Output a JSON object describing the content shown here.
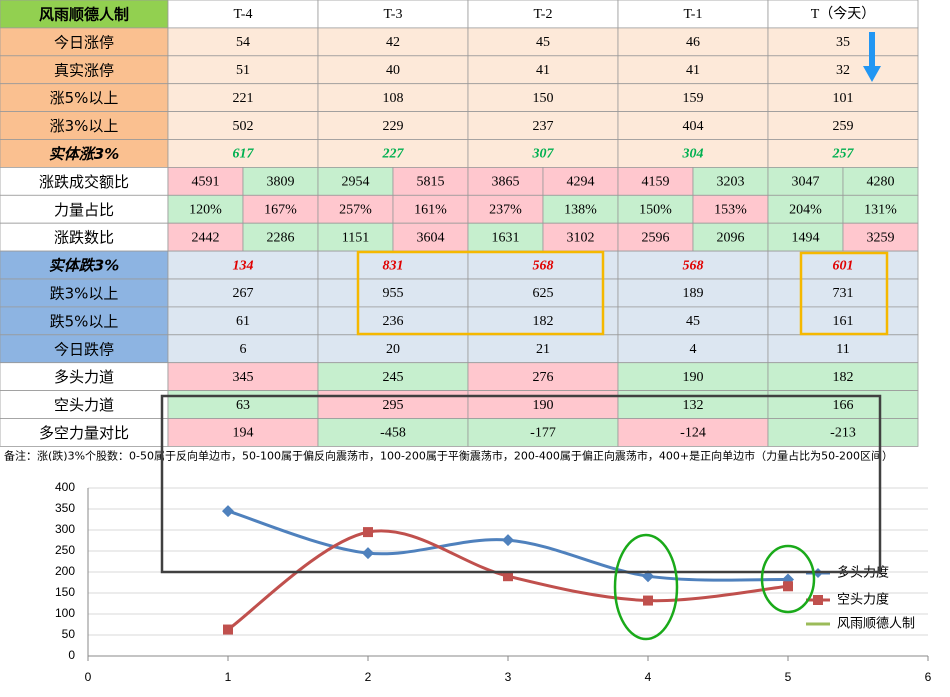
{
  "table": {
    "header": [
      "风雨顺德人制",
      "T-4",
      "T-3",
      "T-2",
      "T-1",
      "T（今天）"
    ],
    "header_fill": "#92d050",
    "rows": [
      {
        "label": "今日涨停",
        "values": [
          54,
          42,
          45,
          46,
          35
        ],
        "label_fill": "#fac090",
        "fill": "#fde9d9"
      },
      {
        "label": "真实涨停",
        "values": [
          51,
          40,
          41,
          41,
          32
        ],
        "label_fill": "#fac090",
        "fill": "#fde9d9"
      },
      {
        "label": "涨5%以上",
        "values": [
          221,
          108,
          150,
          159,
          101
        ],
        "label_fill": "#fac090",
        "fill": "#fde9d9"
      },
      {
        "label": "涨3%以上",
        "values": [
          502,
          229,
          237,
          404,
          259
        ],
        "label_fill": "#fac090",
        "fill": "#fde9d9"
      },
      {
        "label": "实体涨3%",
        "values": [
          617,
          227,
          307,
          304,
          257
        ],
        "label_fill": "#fac090",
        "fill": "#fde9d9",
        "text_color": "#00b050",
        "italic": true
      },
      {
        "label": "涨跌成交额比",
        "values": [
          [
            4591,
            3809
          ],
          [
            2954,
            5815
          ],
          [
            3865,
            4294
          ],
          [
            4159,
            3203
          ],
          [
            3047,
            4280
          ]
        ],
        "label_fill": "#ffffff",
        "colors": [
          [
            "#ffc7ce",
            "#c6efce"
          ],
          [
            "#c6efce",
            "#ffc7ce"
          ],
          [
            "#ffc7ce",
            "#ffc7ce"
          ],
          [
            "#ffc7ce",
            "#c6efce"
          ],
          [
            "#c6efce",
            "#c6efce"
          ]
        ]
      },
      {
        "label": "力量占比",
        "values": [
          [
            "120%",
            "167%"
          ],
          [
            "257%",
            "161%"
          ],
          [
            "237%",
            "138%"
          ],
          [
            "150%",
            "153%"
          ],
          [
            "204%",
            "131%"
          ]
        ],
        "label_fill": "#ffffff",
        "colors": [
          [
            "#c6efce",
            "#ffc7ce"
          ],
          [
            "#ffc7ce",
            "#ffc7ce"
          ],
          [
            "#ffc7ce",
            "#c6efce"
          ],
          [
            "#c6efce",
            "#ffc7ce"
          ],
          [
            "#c6efce",
            "#c6efce"
          ]
        ]
      },
      {
        "label": "涨跌数比",
        "values": [
          [
            2442,
            2286
          ],
          [
            1151,
            3604
          ],
          [
            1631,
            3102
          ],
          [
            2596,
            2096
          ],
          [
            1494,
            3259
          ]
        ],
        "label_fill": "#ffffff",
        "colors": [
          [
            "#ffc7ce",
            "#c6efce"
          ],
          [
            "#c6efce",
            "#ffc7ce"
          ],
          [
            "#c6efce",
            "#ffc7ce"
          ],
          [
            "#ffc7ce",
            "#c6efce"
          ],
          [
            "#c6efce",
            "#ffc7ce"
          ]
        ]
      },
      {
        "label": "实体跌3%",
        "values": [
          134,
          831,
          568,
          568,
          601
        ],
        "label_fill": "#8db4e2",
        "fill": "#dce6f1",
        "text_color": "#e00000",
        "italic": true
      },
      {
        "label": "跌3%以上",
        "values": [
          267,
          955,
          625,
          189,
          731
        ],
        "label_fill": "#8db4e2",
        "fill": "#dce6f1"
      },
      {
        "label": "跌5%以上",
        "values": [
          61,
          236,
          182,
          45,
          161
        ],
        "label_fill": "#8db4e2",
        "fill": "#dce6f1"
      },
      {
        "label": "今日跌停",
        "values": [
          6,
          20,
          21,
          4,
          11
        ],
        "label_fill": "#8db4e2",
        "fill": "#dce6f1"
      },
      {
        "label": "多头力道",
        "values": [
          345,
          245,
          276,
          190,
          182
        ],
        "label_fill": "#ffffff",
        "colors": [
          "#ffc7ce",
          "#c6efce",
          "#ffc7ce",
          "#c6efce",
          "#c6efce"
        ]
      },
      {
        "label": "空头力道",
        "values": [
          63,
          295,
          190,
          132,
          166
        ],
        "label_fill": "#ffffff",
        "colors": [
          "#c6efce",
          "#ffc7ce",
          "#ffc7ce",
          "#c6efce",
          "#c6efce"
        ]
      },
      {
        "label": "多空力量对比",
        "values": [
          194,
          -458,
          -177,
          -124,
          -213
        ],
        "label_fill": "#ffffff",
        "colors": [
          "#ffc7ce",
          "#c6efce",
          "#c6efce",
          "#ffc7ce",
          "#c6efce"
        ]
      }
    ],
    "note": "备注：涨(跌)3%个股数：0-50属于反向单边市，50-100属于偏反向震荡市，100-200属于平衡震荡市，200-400属于偏正向震荡市，400+是正向单边市（力量占比为50-200区间）"
  },
  "chart_data": {
    "type": "line",
    "x": [
      1,
      2,
      3,
      4,
      5
    ],
    "series": [
      {
        "name": "多头力度",
        "color": "#4f81bd",
        "values": [
          345,
          245,
          276,
          190,
          182
        ]
      },
      {
        "name": "空头力度",
        "color": "#c0504d",
        "values": [
          63,
          295,
          190,
          132,
          166
        ]
      }
    ],
    "extra_legend": {
      "name": "风雨顺德人制",
      "color": "#9bbb59"
    },
    "xlim": [
      0,
      6
    ],
    "xticks": [
      0,
      1,
      2,
      3,
      4,
      5,
      6
    ],
    "ylim": [
      0,
      400
    ],
    "yticks": [
      0,
      50,
      100,
      150,
      200,
      250,
      300,
      350,
      400
    ],
    "grid": true,
    "smooth": true,
    "legend": "right"
  }
}
